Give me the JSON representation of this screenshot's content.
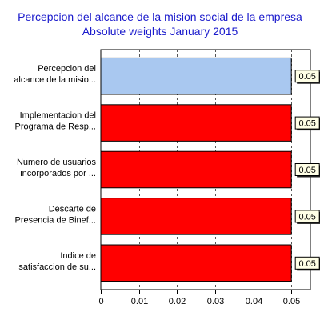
{
  "chart_data": {
    "type": "bar",
    "orientation": "horizontal",
    "title": "Percepcion del alcance de la mision social de la empresa",
    "subtitle": "Absolute weights January 2015",
    "categories": [
      [
        "Percepcion del",
        "alcance de la misio..."
      ],
      [
        "Implementacion del",
        "Programa de Resp..."
      ],
      [
        "Numero de usuarios",
        "incorporados por ..."
      ],
      [
        "Descarte de",
        "Presencia de Binef..."
      ],
      [
        "Indice de",
        "satisfaccion de su..."
      ]
    ],
    "values": [
      0.05,
      0.05,
      0.05,
      0.05,
      0.05
    ],
    "value_labels": [
      "0.05",
      "0.05",
      "0.05",
      "0.05",
      "0.05"
    ],
    "bar_colors": [
      "#a9c8f0",
      "#ff0000",
      "#ff0000",
      "#ff0000",
      "#ff0000"
    ],
    "xticks": [
      "0",
      "0.01",
      "0.02",
      "0.03",
      "0.04",
      "0.05"
    ],
    "xlim": [
      0,
      0.055
    ],
    "grid": true,
    "xlabel": "",
    "ylabel": ""
  }
}
